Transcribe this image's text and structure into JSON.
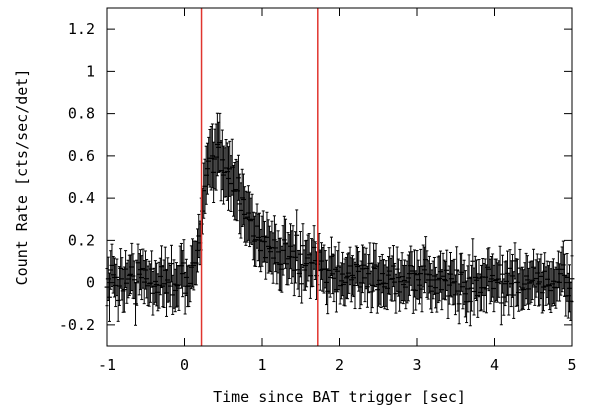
{
  "chart_data": {
    "type": "scatter",
    "title": "",
    "xlabel": "Time since BAT trigger [sec]",
    "ylabel": "Count Rate [cts/sec/det]",
    "xlim": [
      -1,
      5
    ],
    "ylim": [
      -0.3,
      1.3
    ],
    "xticks": [
      -1,
      0,
      1,
      2,
      3,
      4,
      5
    ],
    "xtick_labels": [
      "-1",
      "0",
      "1",
      "2",
      "3",
      "4",
      "5"
    ],
    "yticks": [
      -0.2,
      0,
      0.2,
      0.4,
      0.6,
      0.8,
      1,
      1.2
    ],
    "ytick_labels": [
      "-0.2",
      "0",
      "0.2",
      "0.4",
      "0.6",
      "0.8",
      "1",
      "1.2"
    ],
    "grid": false,
    "legend": "none",
    "error_bars": true,
    "bin_width": 0.016,
    "colors": {
      "data": "#000000",
      "markers": "#e0342e"
    },
    "vertical_lines": [
      0.22,
      1.72
    ],
    "series": [
      {
        "profile_points": [
          {
            "x": -1.0,
            "y": 0.0,
            "err": 0.1
          },
          {
            "x": -0.6,
            "y": 0.02,
            "err": 0.1
          },
          {
            "x": -0.2,
            "y": 0.0,
            "err": 0.1
          },
          {
            "x": 0.1,
            "y": 0.05,
            "err": 0.1
          },
          {
            "x": 0.2,
            "y": 0.2,
            "err": 0.11
          },
          {
            "x": 0.28,
            "y": 0.5,
            "err": 0.13
          },
          {
            "x": 0.45,
            "y": 0.62,
            "err": 0.14
          },
          {
            "x": 0.6,
            "y": 0.52,
            "err": 0.13
          },
          {
            "x": 0.8,
            "y": 0.32,
            "err": 0.12
          },
          {
            "x": 1.0,
            "y": 0.2,
            "err": 0.11
          },
          {
            "x": 1.3,
            "y": 0.12,
            "err": 0.11
          },
          {
            "x": 1.8,
            "y": 0.05,
            "err": 0.1
          },
          {
            "x": 2.5,
            "y": 0.02,
            "err": 0.1
          },
          {
            "x": 3.5,
            "y": 0.0,
            "err": 0.1
          },
          {
            "x": 5.0,
            "y": 0.0,
            "err": 0.1
          }
        ],
        "noise_amplitude": 0.06
      }
    ]
  }
}
